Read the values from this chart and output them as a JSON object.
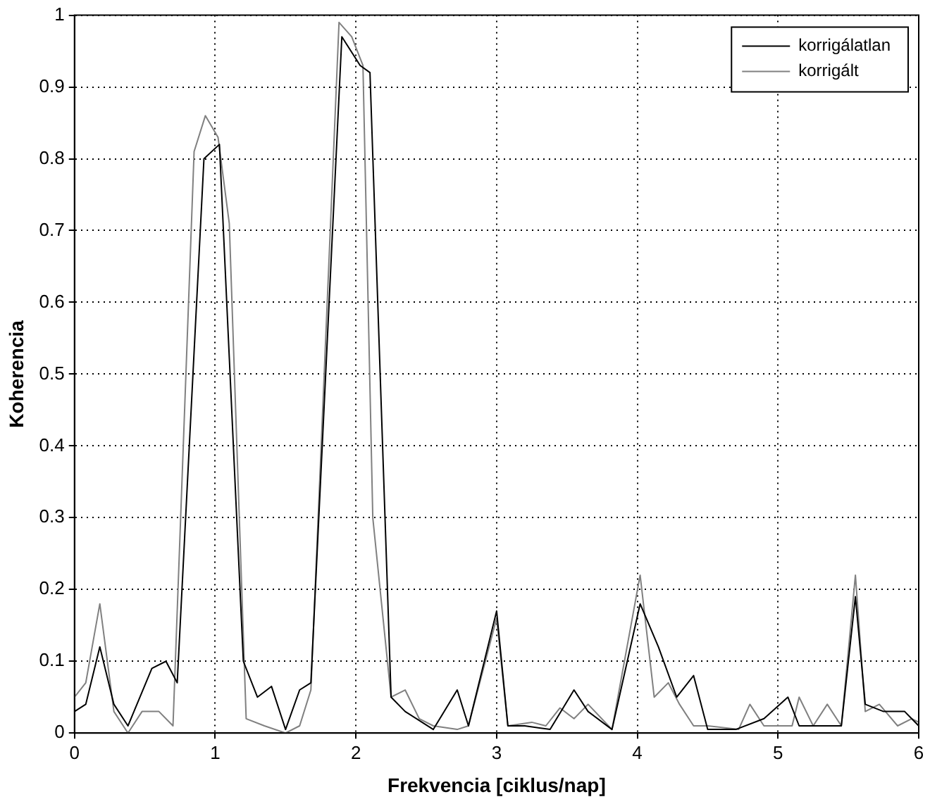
{
  "chart_data": {
    "type": "line",
    "xlabel": "Frekvencia [ciklus/nap]",
    "ylabel": "Koherencia",
    "xlim": [
      0,
      6
    ],
    "ylim": [
      0,
      1
    ],
    "xticks": [
      0,
      1,
      2,
      3,
      4,
      5,
      6
    ],
    "yticks": [
      0,
      0.1,
      0.2,
      0.3,
      0.4,
      0.5,
      0.6,
      0.7,
      0.8,
      0.9,
      1
    ],
    "grid": true,
    "legend": "top right",
    "marker": "none",
    "line_style": "solid",
    "series": [
      {
        "name": "korrigálatlan",
        "color": "#000000",
        "x": [
          0,
          0.08,
          0.18,
          0.28,
          0.38,
          0.55,
          0.65,
          0.73,
          0.92,
          1.03,
          1.2,
          1.3,
          1.4,
          1.5,
          1.6,
          1.68,
          1.9,
          2.03,
          2.1,
          2.25,
          2.35,
          2.55,
          2.72,
          2.8,
          3.0,
          3.08,
          3.2,
          3.38,
          3.55,
          3.65,
          3.82,
          4.02,
          4.15,
          4.28,
          4.4,
          4.5,
          4.7,
          4.9,
          5.07,
          5.15,
          5.3,
          5.45,
          5.55,
          5.62,
          5.75,
          5.9,
          6.0
        ],
        "values": [
          0.03,
          0.04,
          0.12,
          0.04,
          0.01,
          0.09,
          0.1,
          0.07,
          0.8,
          0.82,
          0.1,
          0.05,
          0.065,
          0.005,
          0.06,
          0.07,
          0.97,
          0.93,
          0.92,
          0.05,
          0.03,
          0.005,
          0.06,
          0.01,
          0.17,
          0.01,
          0.01,
          0.005,
          0.06,
          0.03,
          0.005,
          0.18,
          0.12,
          0.05,
          0.08,
          0.005,
          0.005,
          0.02,
          0.05,
          0.01,
          0.01,
          0.01,
          0.19,
          0.04,
          0.03,
          0.03,
          0.01
        ]
      },
      {
        "name": "korrigált",
        "color": "#808080",
        "x": [
          0,
          0.08,
          0.18,
          0.28,
          0.38,
          0.48,
          0.6,
          0.7,
          0.85,
          0.93,
          1.02,
          1.1,
          1.22,
          1.35,
          1.5,
          1.6,
          1.68,
          1.88,
          1.97,
          2.05,
          2.12,
          2.25,
          2.35,
          2.45,
          2.55,
          2.72,
          2.8,
          3.0,
          3.08,
          3.25,
          3.35,
          3.45,
          3.55,
          3.65,
          3.82,
          4.02,
          4.12,
          4.22,
          4.3,
          4.4,
          4.5,
          4.72,
          4.8,
          4.9,
          5.1,
          5.15,
          5.25,
          5.35,
          5.45,
          5.55,
          5.62,
          5.72,
          5.85,
          5.95,
          6.0
        ],
        "values": [
          0.05,
          0.07,
          0.18,
          0.03,
          0.0,
          0.03,
          0.03,
          0.01,
          0.81,
          0.86,
          0.83,
          0.71,
          0.02,
          0.01,
          0.0,
          0.01,
          0.06,
          0.99,
          0.97,
          0.93,
          0.3,
          0.05,
          0.06,
          0.02,
          0.01,
          0.005,
          0.01,
          0.16,
          0.01,
          0.015,
          0.01,
          0.035,
          0.02,
          0.04,
          0.005,
          0.22,
          0.05,
          0.07,
          0.04,
          0.01,
          0.01,
          0.005,
          0.04,
          0.01,
          0.01,
          0.05,
          0.01,
          0.04,
          0.01,
          0.22,
          0.03,
          0.04,
          0.01,
          0.02,
          0.015
        ]
      }
    ]
  }
}
